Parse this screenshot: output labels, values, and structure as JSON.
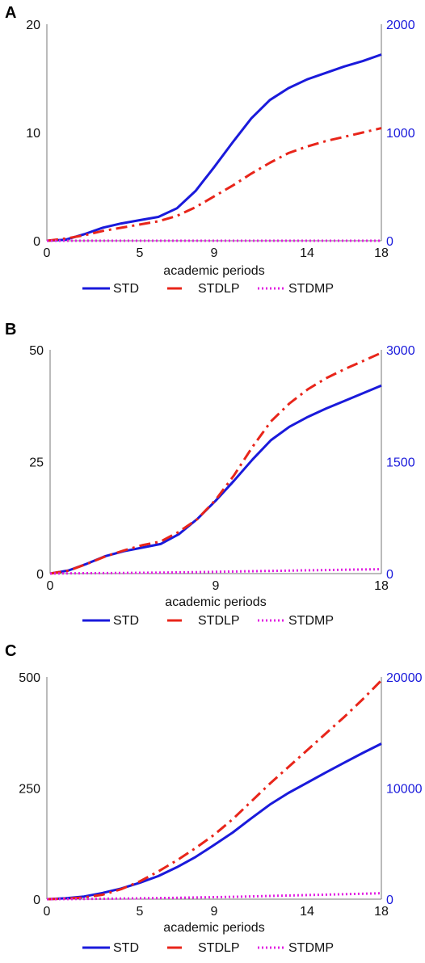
{
  "chart_data": [
    {
      "panel_label": "A",
      "type": "line",
      "xlabel": "academic periods",
      "x": [
        0,
        1,
        2,
        3,
        4,
        5,
        6,
        7,
        8,
        9,
        10,
        11,
        12,
        13,
        14,
        15,
        16,
        17,
        18
      ],
      "x_ticks": [
        0,
        5,
        9,
        14,
        18
      ],
      "xlim": [
        0,
        18
      ],
      "y_left": {
        "lim": [
          0,
          20
        ],
        "ticks": [
          0,
          10,
          20
        ]
      },
      "y_right": {
        "lim": [
          0,
          2000
        ],
        "ticks": [
          0,
          1000,
          2000
        ],
        "color": "#1a1adb"
      },
      "grid": false,
      "legend_placement": "bottom",
      "series": [
        {
          "name": "STD",
          "axis": "left",
          "color": "#1a1adb",
          "style": "solid",
          "values": [
            0,
            0.1,
            0.6,
            1.2,
            1.6,
            1.9,
            2.2,
            3.0,
            4.6,
            6.8,
            9.1,
            11.3,
            13.0,
            14.1,
            14.9,
            15.5,
            16.1,
            16.6,
            17.2
          ]
        },
        {
          "name": "STDLP",
          "axis": "right",
          "color": "#e8251a",
          "style": "dashdot",
          "values": [
            0,
            20,
            50,
            90,
            120,
            150,
            180,
            230,
            310,
            410,
            510,
            620,
            720,
            810,
            870,
            920,
            960,
            1000,
            1040
          ]
        },
        {
          "name": "STDMP",
          "axis": "right",
          "color": "#e21ee2",
          "style": "dotted",
          "values": [
            0,
            0,
            0,
            0,
            0,
            0,
            0,
            0,
            0,
            0,
            0,
            0,
            0,
            0,
            0,
            0,
            0,
            0,
            0
          ]
        }
      ]
    },
    {
      "panel_label": "B",
      "type": "line",
      "xlabel": "academic periods",
      "x": [
        0,
        1,
        2,
        3,
        4,
        5,
        6,
        7,
        8,
        9,
        10,
        11,
        12,
        13,
        14,
        15,
        16,
        17,
        18
      ],
      "x_ticks": [
        0,
        9,
        18
      ],
      "xlim": [
        0,
        18
      ],
      "y_left": {
        "lim": [
          0,
          50
        ],
        "ticks": [
          0,
          25,
          50
        ]
      },
      "y_right": {
        "lim": [
          0,
          3000
        ],
        "ticks": [
          0,
          1500,
          3000
        ],
        "color": "#1a1adb"
      },
      "grid": false,
      "legend_placement": "bottom",
      "series": [
        {
          "name": "STD",
          "axis": "left",
          "color": "#1a1adb",
          "style": "solid",
          "values": [
            0,
            0.7,
            2.2,
            3.9,
            5.0,
            5.8,
            6.6,
            8.8,
            12.2,
            16.3,
            20.8,
            25.5,
            29.8,
            32.8,
            35.0,
            36.9,
            38.6,
            40.3,
            42.0
          ]
        },
        {
          "name": "STDLP",
          "axis": "right",
          "color": "#e8251a",
          "style": "dashdot",
          "values": [
            0,
            40,
            130,
            230,
            310,
            380,
            430,
            560,
            730,
            990,
            1320,
            1700,
            2040,
            2280,
            2470,
            2620,
            2740,
            2850,
            2960
          ]
        },
        {
          "name": "STDMP",
          "axis": "right",
          "color": "#e21ee2",
          "style": "dotted",
          "values": [
            0,
            3,
            5,
            7,
            9,
            11,
            13,
            16,
            20,
            24,
            28,
            32,
            36,
            40,
            44,
            48,
            52,
            55,
            58
          ]
        }
      ]
    },
    {
      "panel_label": "C",
      "type": "line",
      "xlabel": "academic periods",
      "x": [
        0,
        1,
        2,
        3,
        4,
        5,
        6,
        7,
        8,
        9,
        10,
        11,
        12,
        13,
        14,
        15,
        16,
        17,
        18
      ],
      "x_ticks": [
        0,
        5,
        9,
        14,
        18
      ],
      "xlim": [
        0,
        18
      ],
      "y_left": {
        "lim": [
          0,
          500
        ],
        "ticks": [
          0,
          250,
          500
        ]
      },
      "y_right": {
        "lim": [
          0,
          20000
        ],
        "ticks": [
          0,
          10000,
          20000
        ],
        "color": "#1a1adb"
      },
      "grid": false,
      "legend_placement": "bottom",
      "series": [
        {
          "name": "STD",
          "axis": "left",
          "color": "#1a1adb",
          "style": "solid",
          "values": [
            0,
            2,
            6,
            14,
            24,
            37,
            52,
            72,
            95,
            122,
            150,
            182,
            213,
            239,
            262,
            285,
            307,
            329,
            350
          ]
        },
        {
          "name": "STDLP",
          "axis": "right",
          "color": "#e8251a",
          "style": "dashdot",
          "values": [
            0,
            50,
            150,
            400,
            900,
            1600,
            2500,
            3500,
            4600,
            5800,
            7200,
            8800,
            10400,
            11900,
            13400,
            14900,
            16400,
            18000,
            19700
          ]
        },
        {
          "name": "STDMP",
          "axis": "right",
          "color": "#e21ee2",
          "style": "dotted",
          "values": [
            0,
            10,
            20,
            40,
            60,
            80,
            100,
            125,
            150,
            180,
            210,
            250,
            290,
            330,
            370,
            410,
            450,
            490,
            540
          ]
        }
      ]
    }
  ]
}
